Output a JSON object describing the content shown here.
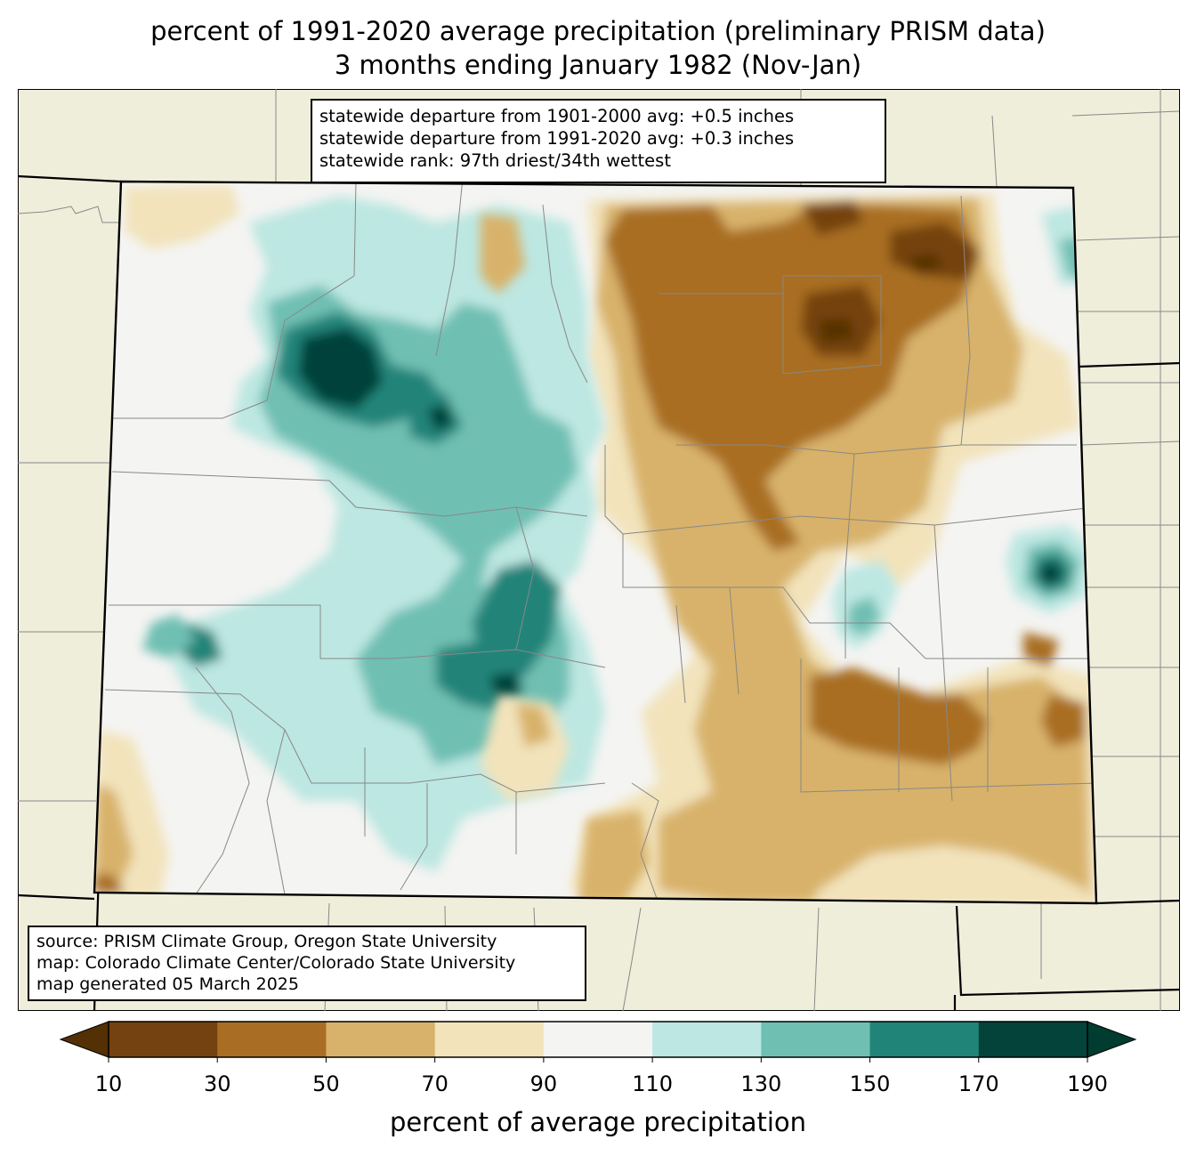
{
  "title": {
    "line1": "percent of 1991-2020 average precipitation (preliminary PRISM data)",
    "line2": "3 months ending January 1982 (Nov-Jan)"
  },
  "stats_box": {
    "line1": "statewide departure from 1901-2000 avg: +0.5 inches",
    "line2": "statewide departure from 1991-2020 avg: +0.3 inches",
    "line3": "statewide rank: 97th driest/34th wettest"
  },
  "credits_box": {
    "line1": "source: PRISM Climate Group, Oregon State University",
    "line2": "map: Colorado Climate Center/Colorado State University",
    "line3": "map generated 05 March 2025"
  },
  "colorbar": {
    "label": "percent of average precipitation",
    "ticks": [
      "10",
      "30",
      "50",
      "70",
      "90",
      "110",
      "130",
      "150",
      "170",
      "190"
    ],
    "colors": [
      "#744210",
      "#a96e24",
      "#d8b26a",
      "#f2e3bb",
      "#f4f4f2",
      "#bde7e2",
      "#6fbfb3",
      "#218479",
      "#03433a"
    ],
    "under_color": "#543005",
    "over_color": "#003c30"
  },
  "map_colors": {
    "land": "#efeedb",
    "ocean_edge": "#ffffff"
  }
}
